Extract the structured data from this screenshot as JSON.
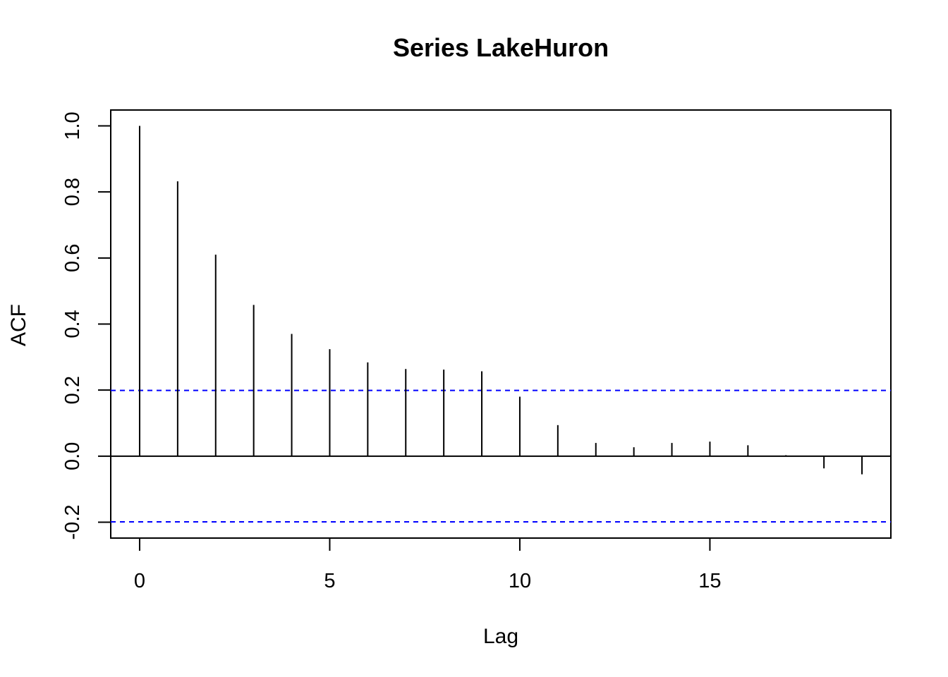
{
  "chart_data": {
    "type": "bar",
    "title": "Series  LakeHuron",
    "xlabel": "Lag",
    "ylabel": "ACF",
    "x": [
      0,
      1,
      2,
      3,
      4,
      5,
      6,
      7,
      8,
      9,
      10,
      11,
      12,
      13,
      14,
      15,
      16,
      17,
      18,
      19
    ],
    "values": [
      1.0,
      0.832,
      0.61,
      0.458,
      0.37,
      0.324,
      0.284,
      0.264,
      0.262,
      0.257,
      0.18,
      0.094,
      0.04,
      0.027,
      0.04,
      0.044,
      0.033,
      0.003,
      -0.037,
      -0.055
    ],
    "xticks": [
      0,
      5,
      10,
      15
    ],
    "xtick_labels": [
      "0",
      "5",
      "10",
      "15"
    ],
    "yticks": [
      -0.2,
      0.0,
      0.2,
      0.4,
      0.6,
      0.8,
      1.0
    ],
    "ytick_labels": [
      "-0.2",
      "0.0",
      "0.2",
      "0.4",
      "0.6",
      "0.8",
      "1.0"
    ],
    "xlim": [
      -0.76,
      19.76
    ],
    "ylim": [
      -0.248,
      1.048
    ],
    "confidence_bounds": [
      0.199,
      -0.199
    ],
    "confidence_color": "#0000ff",
    "bar_color": "#000000",
    "grid": false,
    "legend": "none"
  }
}
